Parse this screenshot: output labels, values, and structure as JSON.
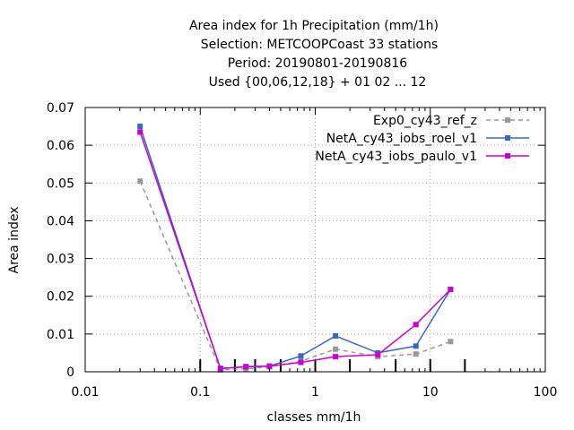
{
  "chart_data": {
    "type": "line",
    "title_lines": [
      "Area index  for 1h Precipitation (mm/1h)",
      "Selection: METCOOPCoast     33 stations",
      "Period: 20190801-20190816",
      "Used {00,06,12,18} + 01 02 ... 12"
    ],
    "xlabel": "classes mm/1h",
    "ylabel": "Area index",
    "xscale": "log",
    "xlim": [
      0.01,
      100
    ],
    "ylim": [
      0,
      0.07
    ],
    "x_ticks": [
      0.01,
      0.1,
      1,
      10,
      100
    ],
    "x_tick_labels": [
      "0.01",
      "0.1",
      "1",
      "10",
      "100"
    ],
    "y_ticks": [
      0,
      0.01,
      0.02,
      0.03,
      0.04,
      0.05,
      0.06,
      0.07
    ],
    "y_tick_labels": [
      "0",
      "0.01",
      "0.02",
      "0.03",
      "0.04",
      "0.05",
      "0.06",
      "0.07"
    ],
    "grid": true,
    "legend_position": "top-right",
    "class_markers": [
      0.1,
      0.2,
      0.3,
      0.5,
      1,
      2,
      5,
      10,
      20
    ],
    "series": [
      {
        "name": "Exp0_cy43_ref_z",
        "color": "#999999",
        "dashed": true,
        "x": [
          0.03,
          0.15,
          0.25,
          0.4,
          0.75,
          1.5,
          3.5,
          7.5,
          15
        ],
        "y": [
          0.0505,
          0.0005,
          0.0008,
          0.0013,
          0.0028,
          0.006,
          0.004,
          0.0047,
          0.008
        ]
      },
      {
        "name": "NetA_cy43_iobs_roel_v1",
        "color": "#3a66cc",
        "dashed": false,
        "x": [
          0.03,
          0.15,
          0.25,
          0.4,
          0.75,
          1.5,
          3.5,
          7.5,
          15
        ],
        "y": [
          0.065,
          0.0008,
          0.0014,
          0.0015,
          0.0042,
          0.0095,
          0.005,
          0.0068,
          0.0218
        ]
      },
      {
        "name": "NetA_cy43_iobs_paulo_v1",
        "color": "#cc00cc",
        "dashed": false,
        "x": [
          0.03,
          0.15,
          0.25,
          0.4,
          0.75,
          1.5,
          3.5,
          7.5,
          15
        ],
        "y": [
          0.0635,
          0.0009,
          0.0013,
          0.0015,
          0.0025,
          0.004,
          0.0045,
          0.0125,
          0.0218
        ]
      }
    ]
  }
}
